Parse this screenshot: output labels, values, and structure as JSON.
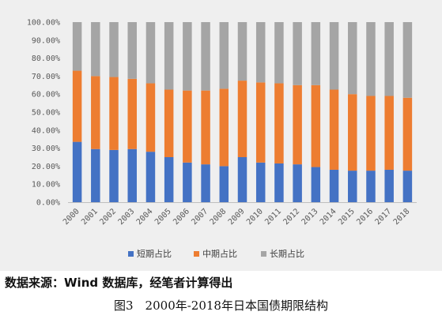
{
  "chart_data": {
    "type": "bar",
    "stacked": true,
    "categories": [
      "2000",
      "2001",
      "2002",
      "2003",
      "2004",
      "2005",
      "2006",
      "2007",
      "2008",
      "2009",
      "2010",
      "2011",
      "2012",
      "2013",
      "2014",
      "2015",
      "2016",
      "2017",
      "2018"
    ],
    "series": [
      {
        "name": "短期占比",
        "color": "#4472c4",
        "values": [
          33.5,
          29.5,
          29.0,
          29.5,
          28.0,
          25.0,
          22.0,
          21.0,
          20.0,
          25.0,
          22.0,
          21.5,
          21.0,
          19.5,
          18.0,
          17.5,
          17.5,
          18.0,
          17.5
        ]
      },
      {
        "name": "中期占比",
        "color": "#ed7d31",
        "values": [
          39.5,
          40.5,
          40.5,
          39.0,
          38.0,
          37.5,
          40.0,
          41.0,
          43.0,
          42.5,
          44.5,
          44.5,
          44.0,
          45.5,
          44.5,
          42.5,
          41.5,
          41.0,
          40.5
        ]
      },
      {
        "name": "长期占比",
        "color": "#a5a5a5",
        "values": [
          27.0,
          30.0,
          30.5,
          31.5,
          34.0,
          37.5,
          38.0,
          38.0,
          37.0,
          32.5,
          33.5,
          34.0,
          35.0,
          35.0,
          37.5,
          40.0,
          41.0,
          41.0,
          42.0
        ]
      }
    ],
    "y_ticks": [
      "0.00%",
      "10.00%",
      "20.00%",
      "30.00%",
      "40.00%",
      "50.00%",
      "60.00%",
      "70.00%",
      "80.00%",
      "90.00%",
      "100.00%"
    ],
    "ylim": [
      0,
      100
    ],
    "legend_position": "bottom",
    "grid": false
  },
  "source": "数据来源：Wind 数据库，经笔者计算得出",
  "caption": "图3　2000年-2018年日本国债期限结构"
}
